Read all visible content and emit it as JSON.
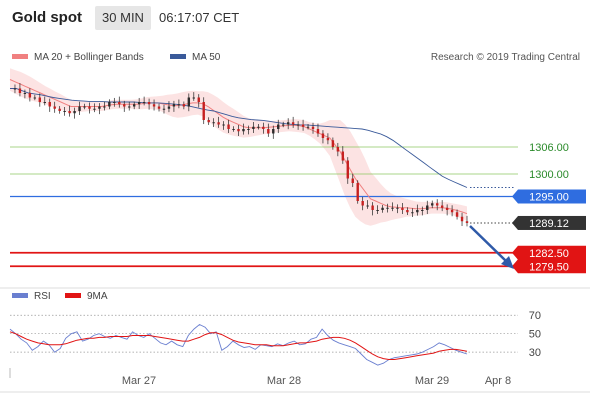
{
  "header": {
    "title": "Gold spot",
    "timeframe": "30 MIN",
    "time": "06:17:07 CET"
  },
  "legend": {
    "ma20": {
      "label": "MA 20 + Bollinger Bands",
      "color": "#f08080"
    },
    "ma50": {
      "label": "MA 50",
      "color": "#3a5a9a"
    },
    "rsi": {
      "label": "RSI",
      "color": "#6a7fd0"
    },
    "ma9": {
      "label": "9MA",
      "color": "#e11414"
    }
  },
  "credit": "Research © 2019 Trading Central",
  "chart_data": {
    "type": "line",
    "x_labels": [
      "Mar 27",
      "Mar 28",
      "Mar 29",
      "Apr 8"
    ],
    "price_ylim": [
      1276,
      1324
    ],
    "levels": [
      {
        "value": "1306.00",
        "price": 1306.0,
        "color": "#8cc860",
        "label_color": "#2a8a2a",
        "style": "green"
      },
      {
        "value": "1300.00",
        "price": 1300.0,
        "color": "#8cc860",
        "label_color": "#2a8a2a",
        "style": "green"
      },
      {
        "value": "1295.00",
        "price": 1295.0,
        "color": "#2f6de0",
        "label_color": "#ffffff",
        "style": "blue"
      },
      {
        "value": "1289.12",
        "price": 1289.12,
        "color": "#333333",
        "label_color": "#ffffff",
        "style": "current"
      },
      {
        "value": "1282.50",
        "price": 1282.5,
        "color": "#e11414",
        "label_color": "#ffffff",
        "style": "red"
      },
      {
        "value": "1279.50",
        "price": 1279.5,
        "color": "#e11414",
        "label_color": "#ffffff",
        "style": "red"
      }
    ],
    "price_series": [
      1319,
      1319,
      1318,
      1318,
      1317,
      1317,
      1316,
      1316,
      1315,
      1314.5,
      1314,
      1314,
      1313.5,
      1314,
      1315,
      1315,
      1314.5,
      1314.5,
      1315,
      1315,
      1316,
      1316,
      1315.5,
      1315,
      1315,
      1315.5,
      1316,
      1316,
      1315.5,
      1315,
      1314.5,
      1314.5,
      1315,
      1315.5,
      1315.5,
      1315,
      1317,
      1317,
      1316,
      1312,
      1311.5,
      1311.5,
      1311,
      1311,
      1310,
      1310,
      1309.5,
      1310,
      1310,
      1310.5,
      1310.5,
      1310,
      1309,
      1310,
      1311,
      1311,
      1311.5,
      1311,
      1311,
      1310.5,
      1310.5,
      1310,
      1309,
      1308,
      1307.5,
      1306,
      1305,
      1303,
      1299,
      1298,
      1294,
      1293,
      1293,
      1292,
      1292,
      1292.5,
      1292.5,
      1292.5,
      1292.5,
      1292,
      1291.5,
      1291.5,
      1292,
      1292,
      1293,
      1293.5,
      1293,
      1292.5,
      1292,
      1291.5,
      1290.5,
      1289.5,
      1289.12
    ],
    "ma20_series": [
      1321,
      1320.5,
      1320,
      1319.5,
      1319,
      1318.5,
      1318,
      1317.5,
      1317,
      1316.5,
      1316,
      1315.5,
      1315,
      1315,
      1315,
      1315,
      1315,
      1315,
      1315,
      1315.2,
      1315.4,
      1315.5,
      1315.5,
      1315.5,
      1315.5,
      1315.5,
      1315.6,
      1315.8,
      1315.8,
      1315.8,
      1315.6,
      1315.4,
      1315.2,
      1315.2,
      1315.4,
      1315.6,
      1315.8,
      1315.8,
      1315.6,
      1315,
      1314.2,
      1313.4,
      1312.6,
      1312,
      1311.5,
      1311,
      1310.5,
      1310.3,
      1310.3,
      1310.3,
      1310.3,
      1310.4,
      1310.5,
      1310.6,
      1310.7,
      1310.8,
      1310.8,
      1310.7,
      1310.5,
      1310,
      1309.5,
      1309,
      1308.5,
      1308,
      1306.5,
      1305,
      1303,
      1301,
      1299,
      1297.5,
      1296,
      1294.5,
      1294,
      1293.5,
      1293,
      1292.7,
      1292.6,
      1292.5,
      1292.5,
      1292.4,
      1292.3,
      1292.3,
      1292.4,
      1292.5,
      1292.5,
      1292.5,
      1292.4,
      1292.2,
      1291.9,
      1291.6,
      1291.2
    ],
    "bb_width": [
      2.5,
      2.6,
      2.7,
      2.7,
      2.6,
      2.4,
      2.2,
      2.0,
      1.9,
      1.8,
      1.7,
      1.6,
      1.5,
      1.3,
      1.2,
      1.1,
      1.0,
      1.0,
      1.0,
      1.0,
      1.0,
      1.0,
      1.0,
      1.0,
      1.0,
      1.1,
      1.2,
      1.3,
      1.4,
      1.5,
      1.8,
      2.2,
      2.5,
      2.7,
      2.8,
      2.8,
      2.7,
      2.6,
      2.8,
      3.2,
      3.4,
      3.5,
      3.4,
      3.2,
      3.0,
      2.7,
      2.4,
      2.1,
      1.9,
      1.7,
      1.5,
      1.4,
      1.3,
      1.3,
      1.3,
      1.3,
      1.4,
      1.4,
      1.4,
      1.5,
      1.8,
      2.2,
      3.0,
      4.0,
      5.5,
      7.0,
      8.0,
      8.5,
      8.5,
      8.0,
      7.2,
      6.0,
      5.2,
      4.3,
      3.6,
      3.0,
      2.6,
      2.3,
      2.0,
      1.8,
      1.6,
      1.5,
      1.4,
      1.3,
      1.3,
      1.3,
      1.3,
      1.3,
      1.4,
      1.5,
      1.6
    ],
    "ma50_series": [
      1319,
      1319,
      1318.5,
      1318,
      1317.8,
      1317.6,
      1317.3,
      1317,
      1316.8,
      1316.6,
      1316.4,
      1316.3,
      1316.2,
      1316.1,
      1316.1,
      1316.1,
      1316,
      1316,
      1316,
      1316,
      1316,
      1315.9,
      1315.8,
      1315.8,
      1315.8,
      1315.7,
      1315.6,
      1315.5,
      1315.3,
      1315.1,
      1314.8,
      1314.5,
      1314.2,
      1314,
      1313.6,
      1313.2,
      1312.8,
      1312.5,
      1312.3,
      1312.1,
      1312,
      1311.9,
      1311.7,
      1311.5,
      1311.3,
      1311.1,
      1311,
      1310.9,
      1310.9,
      1310.8,
      1310.7,
      1310.6,
      1310.5,
      1310.4,
      1310.3,
      1310.2,
      1310.1,
      1310,
      1309.7,
      1309.3,
      1308.9,
      1308.3,
      1307.5,
      1306.5,
      1305.5,
      1304.5,
      1303.5,
      1302.5,
      1301.5,
      1300.5,
      1299.5,
      1298.8,
      1298.2,
      1297.6,
      1297
    ],
    "rsi_ylim": [
      15,
      80
    ],
    "rsi_ticks": [
      "70",
      "50",
      "30"
    ],
    "rsi_tick_values": [
      70,
      50,
      30
    ],
    "rsi_series": [
      55,
      50,
      44,
      40,
      32,
      36,
      42,
      38,
      30,
      34,
      45,
      50,
      52,
      42,
      44,
      48,
      50,
      47,
      45,
      48,
      46,
      44,
      52,
      48,
      46,
      50,
      45,
      40,
      38,
      42,
      38,
      36,
      48,
      55,
      60,
      57,
      50,
      52,
      32,
      36,
      42,
      38,
      35,
      36,
      33,
      38,
      37,
      36,
      39,
      37,
      40,
      42,
      38,
      39,
      44,
      46,
      55,
      48,
      43,
      40,
      38,
      36,
      34,
      28,
      22,
      19,
      16,
      18,
      22,
      24,
      25,
      26,
      27,
      28,
      30,
      33,
      36,
      40,
      38,
      35,
      32,
      30,
      28
    ],
    "ma9_series": [
      52,
      50,
      47,
      44,
      42,
      40,
      39,
      38,
      38,
      38,
      39,
      41,
      43,
      44,
      45,
      45,
      46,
      46,
      47,
      47,
      47,
      47,
      48,
      48,
      48,
      48,
      47,
      46,
      45,
      44,
      43,
      42,
      42,
      44,
      46,
      49,
      51,
      51,
      49,
      46,
      43,
      41,
      40,
      39,
      38,
      38,
      38,
      37,
      37,
      37,
      38,
      39,
      40,
      40,
      41,
      42,
      44,
      45,
      46,
      46,
      45,
      43,
      40,
      36,
      32,
      28,
      25,
      23,
      22,
      22,
      23,
      24,
      25,
      26,
      27,
      28,
      29,
      31,
      32,
      33,
      33,
      32,
      31
    ]
  }
}
